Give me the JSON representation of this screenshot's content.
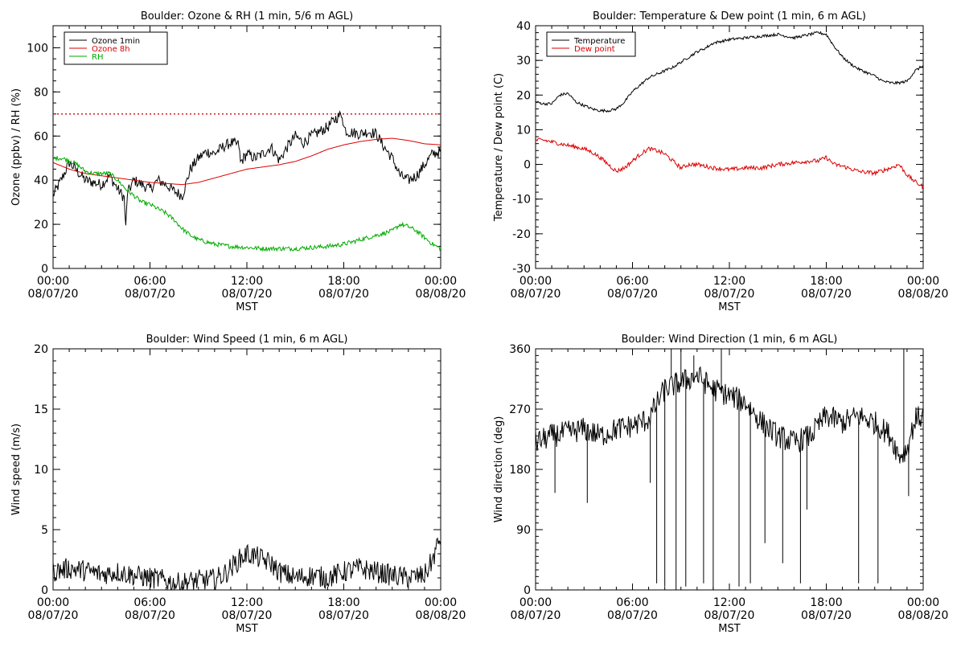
{
  "chart_data": [
    {
      "type": "line",
      "title": "Boulder: Ozone & RH (1 min, 5/6 m AGL)",
      "xlabel": "MST",
      "ylabel": "Ozone (ppbv) / RH (%)",
      "xlim": [
        0,
        24
      ],
      "ylim": [
        0,
        110
      ],
      "x_ticks": [
        {
          "x": 0,
          "label": [
            "00:00",
            "08/07/20"
          ]
        },
        {
          "x": 6,
          "label": [
            "06:00",
            "08/07/20"
          ]
        },
        {
          "x": 12,
          "label": [
            "12:00",
            "08/07/20"
          ]
        },
        {
          "x": 18,
          "label": [
            "18:00",
            "08/07/20"
          ]
        },
        {
          "x": 24,
          "label": [
            "00:00",
            "08/08/20"
          ]
        }
      ],
      "y_ticks": [
        0,
        20,
        40,
        60,
        80,
        100
      ],
      "y_minor_step": 5,
      "legend_position": "top-left",
      "reference_lines": [
        {
          "y": 70,
          "color": "#dd0000",
          "style": "dotted"
        }
      ],
      "series": [
        {
          "name": "Ozone 1min",
          "color": "#000000",
          "noise": 2.5,
          "x": [
            0,
            0.5,
            1,
            1.5,
            2,
            3,
            3.5,
            4,
            4.4,
            4.5,
            4.6,
            5,
            5.5,
            6,
            6.5,
            7,
            7.5,
            8,
            8.3,
            8.5,
            9,
            9.5,
            10,
            10.5,
            11,
            11.5,
            11.6,
            12,
            12.5,
            13,
            13.5,
            14,
            14.5,
            15,
            15.5,
            16,
            16.5,
            17,
            17.5,
            17.9,
            18,
            18.2,
            19,
            19.5,
            20,
            20.5,
            21,
            21.5,
            22,
            22.5,
            23,
            23.5,
            24
          ],
          "y": [
            33,
            40,
            48,
            44,
            40,
            38,
            42,
            36,
            32,
            18,
            34,
            40,
            38,
            36,
            40,
            38,
            35,
            33,
            40,
            45,
            50,
            53,
            52,
            55,
            57,
            56,
            48,
            52,
            50,
            52,
            55,
            49,
            55,
            60,
            57,
            60,
            62,
            64,
            68,
            70,
            64,
            62,
            61,
            62,
            61,
            55,
            50,
            42,
            40,
            42,
            47,
            52,
            53
          ]
        },
        {
          "name": "Ozone 8h",
          "color": "#dd0000",
          "noise": 0,
          "x": [
            0,
            1,
            2,
            3,
            4,
            5,
            6,
            7,
            8,
            9,
            10,
            11,
            12,
            13,
            14,
            15,
            16,
            17,
            18,
            19,
            20,
            21,
            22,
            23,
            24
          ],
          "y": [
            48,
            45,
            43,
            42,
            41,
            40,
            39,
            38.5,
            38,
            39,
            41,
            43,
            45,
            46,
            47,
            48.5,
            51,
            54,
            56,
            57.5,
            58.5,
            59,
            58,
            56.5,
            56
          ]
        },
        {
          "name": "RH",
          "color": "#00aa00",
          "noise": 1.0,
          "x": [
            0,
            0.5,
            1,
            1.5,
            2,
            2.5,
            3,
            3.5,
            4,
            4.5,
            5,
            5.5,
            6,
            6.5,
            7,
            7.5,
            8,
            8.5,
            9,
            10,
            11,
            12,
            13,
            14,
            15,
            16,
            17,
            18,
            19,
            20,
            21,
            21.5,
            22,
            22.5,
            23,
            23.5,
            24
          ],
          "y": [
            50,
            50,
            49,
            47,
            44,
            43,
            43,
            43,
            40,
            36,
            33,
            30,
            29,
            27,
            25,
            22,
            18,
            15,
            13,
            11,
            10,
            9.5,
            9,
            9,
            9,
            9.5,
            10,
            11,
            13,
            15,
            17,
            20,
            19,
            17,
            14,
            11,
            9
          ]
        }
      ]
    },
    {
      "type": "line",
      "title": "Boulder: Temperature & Dew point (1 min, 6 m AGL)",
      "xlabel": "MST",
      "ylabel": "Temperature / Dew point (C)",
      "xlim": [
        0,
        24
      ],
      "ylim": [
        -30,
        40
      ],
      "x_ticks": [
        {
          "x": 0,
          "label": [
            "00:00",
            "08/07/20"
          ]
        },
        {
          "x": 6,
          "label": [
            "06:00",
            "08/07/20"
          ]
        },
        {
          "x": 12,
          "label": [
            "12:00",
            "08/07/20"
          ]
        },
        {
          "x": 18,
          "label": [
            "18:00",
            "08/07/20"
          ]
        },
        {
          "x": 24,
          "label": [
            "00:00",
            "08/08/20"
          ]
        }
      ],
      "y_ticks": [
        -30,
        -20,
        -10,
        0,
        10,
        20,
        30,
        40
      ],
      "y_minor_step": 2,
      "legend_position": "top-left",
      "reference_lines": [],
      "series": [
        {
          "name": "Temperature",
          "color": "#000000",
          "noise": 0.4,
          "x": [
            0,
            0.5,
            1,
            1.5,
            2,
            2.5,
            3,
            3.5,
            4,
            4.5,
            5,
            5.5,
            6,
            6.5,
            7,
            7.5,
            8,
            8.5,
            9,
            9.5,
            10,
            10.5,
            11,
            11.5,
            12,
            12.5,
            13,
            14,
            15,
            15.5,
            16,
            16.5,
            17,
            17.5,
            18,
            18.5,
            19,
            19.5,
            20,
            21,
            21.5,
            22,
            22.5,
            23,
            23.5,
            24
          ],
          "y": [
            18,
            17.5,
            17.5,
            20,
            20.5,
            18,
            17,
            16,
            15.5,
            15.5,
            16,
            18,
            21,
            23,
            25,
            26,
            27,
            28,
            29.5,
            31,
            32.5,
            33.5,
            35,
            35.5,
            36,
            36.3,
            36.5,
            37,
            37.5,
            37,
            36.5,
            37,
            37.5,
            38,
            37.5,
            34,
            31,
            29,
            27.5,
            25.5,
            24,
            23.5,
            23.5,
            24,
            27,
            28.5
          ]
        },
        {
          "name": "Dew point",
          "color": "#dd0000",
          "noise": 0.6,
          "x": [
            0,
            0.5,
            1,
            1.5,
            2,
            2.5,
            3,
            3.5,
            4,
            4.5,
            5,
            5.5,
            6,
            6.5,
            7,
            7.5,
            8,
            8.5,
            9,
            9.5,
            10,
            11,
            12,
            13,
            14,
            15,
            16,
            17,
            17.5,
            18,
            18.5,
            19,
            20,
            21,
            22,
            22.5,
            23,
            23.5,
            24
          ],
          "y": [
            7,
            7,
            6.5,
            6,
            5.5,
            5,
            4.5,
            3.5,
            2,
            0,
            -2,
            -1,
            1,
            3,
            4.5,
            4,
            3,
            1,
            -1,
            0,
            0,
            -1,
            -1.5,
            -1,
            -1,
            0,
            0.5,
            1,
            1,
            2,
            0,
            -0.5,
            -2,
            -2.5,
            -1,
            0,
            -3,
            -5,
            -6.5
          ]
        }
      ]
    },
    {
      "type": "line",
      "title": "Boulder: Wind Speed (1 min, 6 m AGL)",
      "xlabel": "MST",
      "ylabel": "Wind speed (m/s)",
      "xlim": [
        0,
        24
      ],
      "ylim": [
        0,
        20
      ],
      "x_ticks": [
        {
          "x": 0,
          "label": [
            "00:00",
            "08/07/20"
          ]
        },
        {
          "x": 6,
          "label": [
            "06:00",
            "08/07/20"
          ]
        },
        {
          "x": 12,
          "label": [
            "12:00",
            "08/07/20"
          ]
        },
        {
          "x": 18,
          "label": [
            "18:00",
            "08/07/20"
          ]
        },
        {
          "x": 24,
          "label": [
            "00:00",
            "08/08/20"
          ]
        }
      ],
      "y_ticks": [
        0,
        5,
        10,
        15,
        20
      ],
      "y_minor_step": 1,
      "legend_position": "",
      "reference_lines": [],
      "series": [
        {
          "name": "",
          "color": "#000000",
          "noise": 0.9,
          "clip_min": 0,
          "x": [
            0,
            1,
            2,
            3,
            4,
            5,
            6,
            7,
            7.5,
            8,
            9,
            10,
            10.5,
            11,
            11.5,
            12,
            12.5,
            13,
            13.5,
            14,
            15,
            16,
            17,
            18,
            19,
            20,
            21,
            22,
            23,
            23.5,
            24
          ],
          "y": [
            1.5,
            1.8,
            1.6,
            1.3,
            1.5,
            1.2,
            1.0,
            0.8,
            0.5,
            0.6,
            0.8,
            0.9,
            1.2,
            1.8,
            2.5,
            3.0,
            2.8,
            2.5,
            2.2,
            1.5,
            1.0,
            1.2,
            1.0,
            1.5,
            1.8,
            1.5,
            1.2,
            1.0,
            1.2,
            2.5,
            4.5
          ]
        }
      ]
    },
    {
      "type": "line",
      "title": "Boulder: Wind Direction (1 min, 6 m AGL)",
      "xlabel": "MST",
      "ylabel": "Wind direction (deg)",
      "xlim": [
        0,
        24
      ],
      "ylim": [
        0,
        360
      ],
      "x_ticks": [
        {
          "x": 0,
          "label": [
            "00:00",
            "08/07/20"
          ]
        },
        {
          "x": 6,
          "label": [
            "06:00",
            "08/07/20"
          ]
        },
        {
          "x": 12,
          "label": [
            "12:00",
            "08/07/20"
          ]
        },
        {
          "x": 18,
          "label": [
            "18:00",
            "08/07/20"
          ]
        },
        {
          "x": 24,
          "label": [
            "00:00",
            "08/08/20"
          ]
        }
      ],
      "y_ticks": [
        0,
        90,
        180,
        270,
        360
      ],
      "y_minor_step": 10,
      "legend_position": "",
      "reference_lines": [],
      "series": [
        {
          "name": "",
          "color": "#000000",
          "noise": 18,
          "clip_min": 0,
          "clip_max": 360,
          "spikes": [
            {
              "x": 1.2,
              "y": 145
            },
            {
              "x": 3.2,
              "y": 130
            },
            {
              "x": 7.1,
              "y": 160
            },
            {
              "x": 7.5,
              "y": 10
            },
            {
              "x": 8.0,
              "y": 5
            },
            {
              "x": 8.4,
              "y": 360
            },
            {
              "x": 8.7,
              "y": 0
            },
            {
              "x": 9.0,
              "y": 360
            },
            {
              "x": 9.3,
              "y": 5
            },
            {
              "x": 9.8,
              "y": 350
            },
            {
              "x": 10.4,
              "y": 10
            },
            {
              "x": 11.0,
              "y": 0
            },
            {
              "x": 11.5,
              "y": 360
            },
            {
              "x": 12.6,
              "y": 5
            },
            {
              "x": 13.3,
              "y": 10
            },
            {
              "x": 14.2,
              "y": 70
            },
            {
              "x": 15.3,
              "y": 40
            },
            {
              "x": 16.4,
              "y": 10
            },
            {
              "x": 16.8,
              "y": 120
            },
            {
              "x": 20.0,
              "y": 10
            },
            {
              "x": 21.2,
              "y": 10
            },
            {
              "x": 22.8,
              "y": 360
            },
            {
              "x": 23.1,
              "y": 140
            }
          ],
          "x": [
            0,
            1,
            2,
            3,
            4,
            5,
            6,
            7,
            8,
            9,
            10,
            11,
            12,
            13,
            14,
            15,
            16,
            17,
            18,
            19,
            20,
            21,
            22,
            22.5,
            23,
            23.5,
            24
          ],
          "y": [
            220,
            230,
            235,
            240,
            230,
            240,
            245,
            255,
            300,
            310,
            320,
            300,
            290,
            280,
            250,
            230,
            220,
            230,
            260,
            250,
            260,
            250,
            230,
            200,
            210,
            255,
            260
          ]
        }
      ]
    }
  ]
}
